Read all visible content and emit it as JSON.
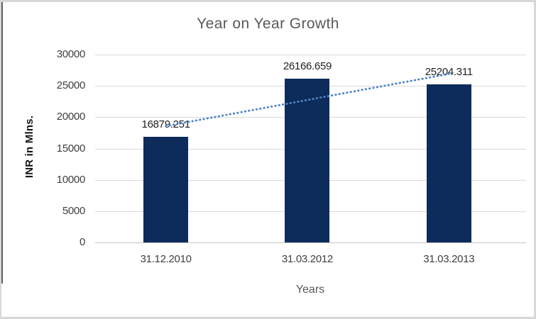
{
  "frame": {
    "border_color": "#d8d8d8",
    "left_edge_color": "#5f5f5f"
  },
  "chart_data": {
    "type": "bar",
    "title": "Year on Year Growth",
    "xlabel": "Years",
    "ylabel": "INR in Mlns.",
    "categories": [
      "31.12.2010",
      "31.03.2012",
      "31.03.2013"
    ],
    "values": [
      16879.251,
      26166.659,
      25204.311
    ],
    "data_labels": [
      "16879.251",
      "26166.659",
      "25204.311"
    ],
    "yticks": [
      "30000",
      "25000",
      "20000",
      "15000",
      "10000",
      "5000",
      "0"
    ],
    "ylim": [
      0,
      30000
    ],
    "grid": true,
    "legend_position": "none",
    "trendline": {
      "type": "linear",
      "style": "dotted"
    },
    "colors": {
      "bar": "#0d2b5b",
      "trendline": "#4e85c5",
      "title_text": "#595959",
      "axis_text": "#3f3f3f",
      "data_label_text": "#1f1f1f",
      "gridline": "#d9d9d9"
    }
  }
}
